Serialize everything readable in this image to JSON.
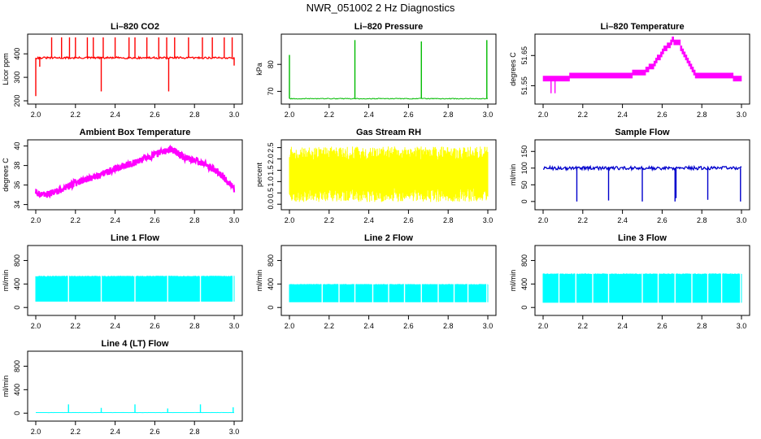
{
  "title": "NWR_051002  2 Hz Diagnostics",
  "chart_data": [
    {
      "type": "line",
      "title": "Li–820 CO2",
      "ylabel": "Licor ppm",
      "color": "#ff0000",
      "xlim": [
        2.0,
        3.0
      ],
      "ylim": [
        200,
        470
      ],
      "xticks": [
        2.0,
        2.2,
        2.4,
        2.6,
        2.8,
        3.0
      ],
      "xtick_labels": [
        "2.0",
        "2.2",
        "2.4",
        "2.6",
        "2.8",
        "3.0"
      ],
      "yticks": [
        200,
        300,
        400
      ],
      "ytick_labels": [
        "200",
        "300",
        "400"
      ],
      "series": [
        {
          "name": "CO2",
          "style": "noisy",
          "base": 383,
          "amp": 4,
          "spikes": [
            [
              2.0,
              220
            ],
            [
              2.02,
              345
            ],
            [
              2.08,
              470
            ],
            [
              2.13,
              470
            ],
            [
              2.17,
              470
            ],
            [
              2.2,
              470
            ],
            [
              2.26,
              470
            ],
            [
              2.29,
              470
            ],
            [
              2.33,
              240
            ],
            [
              2.34,
              470
            ],
            [
              2.4,
              470
            ],
            [
              2.47,
              470
            ],
            [
              2.5,
              470
            ],
            [
              2.56,
              470
            ],
            [
              2.62,
              470
            ],
            [
              2.66,
              470
            ],
            [
              2.67,
              240
            ],
            [
              2.7,
              470
            ],
            [
              2.77,
              470
            ],
            [
              2.84,
              470
            ],
            [
              2.89,
              470
            ],
            [
              2.95,
              470
            ],
            [
              2.99,
              470
            ],
            [
              3.0,
              350
            ]
          ]
        }
      ]
    },
    {
      "type": "line",
      "title": "Li–820 Pressure",
      "ylabel": "kPa",
      "color": "#00bb00",
      "xlim": [
        2.0,
        3.0
      ],
      "ylim": [
        66.5,
        90
      ],
      "xticks": [
        2.0,
        2.2,
        2.4,
        2.6,
        2.8,
        3.0
      ],
      "xtick_labels": [
        "2.0",
        "2.2",
        "2.4",
        "2.6",
        "2.8",
        "3.0"
      ],
      "yticks": [
        70,
        80
      ],
      "ytick_labels": [
        "70",
        "80"
      ],
      "series": [
        {
          "name": "Pressure",
          "style": "smooth",
          "base": 67.3,
          "amp": 0.15,
          "spikes": [
            [
              2.0,
              83.5
            ],
            [
              2.33,
              89
            ],
            [
              2.665,
              88.5
            ],
            [
              2.995,
              89
            ]
          ]
        }
      ]
    },
    {
      "type": "line",
      "title": "Li–820 Temperature",
      "ylabel": "degrees C",
      "color": "#ff00ff",
      "xlim": [
        2.0,
        3.0
      ],
      "ylim": [
        51.5,
        51.71
      ],
      "xticks": [
        2.0,
        2.2,
        2.4,
        2.6,
        2.8,
        3.0
      ],
      "xtick_labels": [
        "2.0",
        "2.2",
        "2.4",
        "2.6",
        "2.8",
        "3.0"
      ],
      "yticks": [
        51.55,
        51.65
      ],
      "ytick_labels": [
        "51.55",
        "51.65"
      ],
      "series": [
        {
          "name": "Temperature",
          "style": "step",
          "amp": 0.012,
          "points": [
            [
              2.0,
              51.565
            ],
            [
              2.06,
              51.565
            ],
            [
              2.1,
              51.57
            ],
            [
              2.16,
              51.58
            ],
            [
              2.4,
              51.58
            ],
            [
              2.5,
              51.59
            ],
            [
              2.56,
              51.62
            ],
            [
              2.6,
              51.66
            ],
            [
              2.65,
              51.695
            ],
            [
              2.68,
              51.69
            ],
            [
              2.71,
              51.65
            ],
            [
              2.74,
              51.61
            ],
            [
              2.77,
              51.58
            ],
            [
              2.95,
              51.575
            ],
            [
              3.0,
              51.57
            ]
          ]
        }
      ]
    },
    {
      "type": "line",
      "title": "Ambient Box Temperature",
      "ylabel": "degrees C",
      "color": "#ff00ff",
      "xlim": [
        2.0,
        3.0
      ],
      "ylim": [
        33.8,
        40.3
      ],
      "xticks": [
        2.0,
        2.2,
        2.4,
        2.6,
        2.8,
        3.0
      ],
      "xtick_labels": [
        "2.0",
        "2.2",
        "2.4",
        "2.6",
        "2.8",
        "3.0"
      ],
      "yticks": [
        34,
        36,
        38,
        40
      ],
      "ytick_labels": [
        "34",
        "36",
        "38",
        "40"
      ],
      "series": [
        {
          "name": "Box temperature",
          "style": "band",
          "amp": 0.35,
          "points": [
            [
              2.0,
              35.2
            ],
            [
              2.05,
              35.0
            ],
            [
              2.1,
              35.3
            ],
            [
              2.2,
              36.2
            ],
            [
              2.3,
              36.8
            ],
            [
              2.4,
              37.7
            ],
            [
              2.5,
              38.3
            ],
            [
              2.6,
              39.1
            ],
            [
              2.68,
              39.7
            ],
            [
              2.75,
              38.8
            ],
            [
              2.85,
              38.2
            ],
            [
              2.93,
              37.2
            ],
            [
              3.0,
              35.6
            ]
          ]
        }
      ]
    },
    {
      "type": "line",
      "title": "Gas Stream RH",
      "ylabel": "percent",
      "color": "#ffff00",
      "xlim": [
        2.0,
        3.0
      ],
      "ylim": [
        -0.1,
        2.7
      ],
      "xticks": [
        2.0,
        2.2,
        2.4,
        2.6,
        2.8,
        3.0
      ],
      "xtick_labels": [
        "2.0",
        "2.2",
        "2.4",
        "2.6",
        "2.8",
        "3.0"
      ],
      "yticks": [
        0.0,
        0.5,
        1.0,
        1.5,
        2.0,
        2.5
      ],
      "ytick_labels": [
        "0.0",
        "0.5",
        "1.0",
        "1.5",
        "2.0",
        "2.5"
      ],
      "series": [
        {
          "name": "RH",
          "style": "fill",
          "low": 0.1,
          "high": 2.55
        }
      ]
    },
    {
      "type": "line",
      "title": "Sample Flow",
      "ylabel": "ml/min",
      "color": "#0000cc",
      "xlim": [
        2.0,
        3.0
      ],
      "ylim": [
        -15,
        175
      ],
      "xticks": [
        2.0,
        2.2,
        2.4,
        2.6,
        2.8,
        3.0
      ],
      "xtick_labels": [
        "2.0",
        "2.2",
        "2.4",
        "2.6",
        "2.8",
        "3.0"
      ],
      "yticks": [
        0,
        50,
        100,
        150
      ],
      "ytick_labels": [
        "0",
        "50",
        "100",
        "150"
      ],
      "series": [
        {
          "name": "Sample flow",
          "style": "noisy",
          "base": 100,
          "amp": 5,
          "spikes": [
            [
              2.17,
              0
            ],
            [
              2.33,
              3
            ],
            [
              2.5,
              0
            ],
            [
              2.665,
              0
            ],
            [
              2.67,
              10
            ],
            [
              2.83,
              5
            ],
            [
              2.995,
              0
            ]
          ]
        }
      ]
    },
    {
      "type": "area",
      "title": "Line 1 Flow",
      "ylabel": "ml/min",
      "color": "#00ffff",
      "xlim": [
        2.0,
        3.0
      ],
      "ylim": [
        -80,
        1000
      ],
      "xticks": [
        2.0,
        2.2,
        2.4,
        2.6,
        2.8,
        3.0
      ],
      "xtick_labels": [
        "2.0",
        "2.2",
        "2.4",
        "2.6",
        "2.8",
        "3.0"
      ],
      "yticks": [
        0,
        400,
        800
      ],
      "ytick_labels": [
        "0",
        "400",
        "800"
      ],
      "series": [
        {
          "name": "Line 1",
          "style": "fill",
          "low": 100,
          "high": 540,
          "gaps": [
            2.165,
            2.33,
            2.5,
            2.665,
            2.83,
            2.995
          ]
        }
      ]
    },
    {
      "type": "area",
      "title": "Line 2 Flow",
      "ylabel": "ml/min",
      "color": "#00ffff",
      "xlim": [
        2.0,
        3.0
      ],
      "ylim": [
        -80,
        1000
      ],
      "xticks": [
        2.0,
        2.2,
        2.4,
        2.6,
        2.8,
        3.0
      ],
      "xtick_labels": [
        "2.0",
        "2.2",
        "2.4",
        "2.6",
        "2.8",
        "3.0"
      ],
      "yticks": [
        0,
        400,
        800
      ],
      "ytick_labels": [
        "0",
        "400",
        "800"
      ],
      "series": [
        {
          "name": "Line 2",
          "style": "fill",
          "low": 90,
          "high": 400,
          "gaps": [
            2.165,
            2.25,
            2.33,
            2.42,
            2.5,
            2.58,
            2.665,
            2.75,
            2.83,
            2.9,
            2.995
          ]
        }
      ]
    },
    {
      "type": "area",
      "title": "Line 3 Flow",
      "ylabel": "ml/min",
      "color": "#00ffff",
      "xlim": [
        2.0,
        3.0
      ],
      "ylim": [
        -80,
        1000
      ],
      "xticks": [
        2.0,
        2.2,
        2.4,
        2.6,
        2.8,
        3.0
      ],
      "xtick_labels": [
        "2.0",
        "2.2",
        "2.4",
        "2.6",
        "2.8",
        "3.0"
      ],
      "yticks": [
        0,
        400,
        800
      ],
      "ytick_labels": [
        "0",
        "400",
        "800"
      ],
      "series": [
        {
          "name": "Line 3",
          "style": "fill",
          "low": 80,
          "high": 580,
          "gaps": [
            2.08,
            2.165,
            2.25,
            2.33,
            2.5,
            2.58,
            2.665,
            2.75,
            2.83,
            2.9,
            2.995
          ]
        }
      ]
    },
    {
      "type": "line",
      "title": "Line 4 (LT) Flow",
      "ylabel": "ml/min",
      "color": "#00ffff",
      "xlim": [
        2.0,
        3.0
      ],
      "ylim": [
        -80,
        1000
      ],
      "xticks": [
        2.0,
        2.2,
        2.4,
        2.6,
        2.8,
        3.0
      ],
      "xtick_labels": [
        "2.0",
        "2.2",
        "2.4",
        "2.6",
        "2.8",
        "3.0"
      ],
      "yticks": [
        0,
        400,
        800
      ],
      "ytick_labels": [
        "0",
        "400",
        "800"
      ],
      "series": [
        {
          "name": "Line 4",
          "style": "smooth",
          "base": 10,
          "amp": 1,
          "spikes": [
            [
              2.165,
              150
            ],
            [
              2.33,
              90
            ],
            [
              2.5,
              150
            ],
            [
              2.665,
              80
            ],
            [
              2.83,
              150
            ],
            [
              2.995,
              100
            ]
          ]
        }
      ]
    }
  ]
}
